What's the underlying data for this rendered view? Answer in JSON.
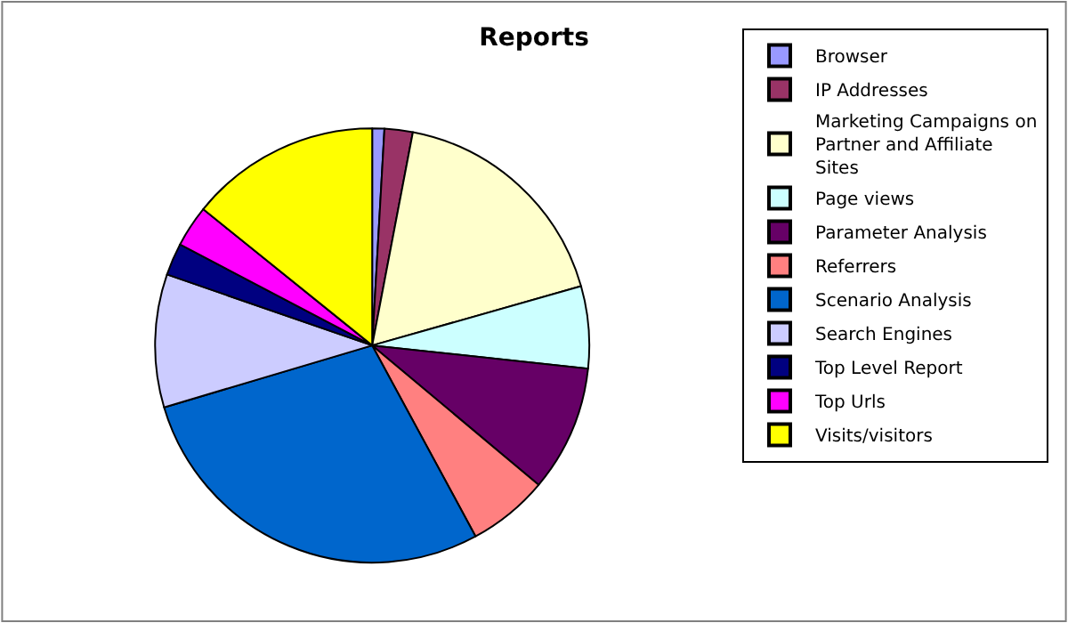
{
  "chart_data": {
    "type": "pie",
    "title": "Reports",
    "categories": [
      "Browser",
      "IP Addresses",
      "Marketing Campaigns on Partner and Affiliate Sites",
      "Page views",
      "Parameter Analysis",
      "Referrers",
      "Scenario Analysis",
      "Search Engines",
      "Top Level Report",
      "Top Urls",
      "Visits/visitors"
    ],
    "values": [
      0.9,
      2.1,
      17.6,
      6.1,
      9.4,
      6.0,
      28.3,
      9.9,
      2.4,
      3.1,
      14.2
    ],
    "colors": [
      "#9999ff",
      "#993366",
      "#ffffcc",
      "#ccffff",
      "#660066",
      "#ff8080",
      "#0066cc",
      "#ccccff",
      "#000080",
      "#ff00ff",
      "#ffff00"
    ],
    "legend": "right"
  }
}
